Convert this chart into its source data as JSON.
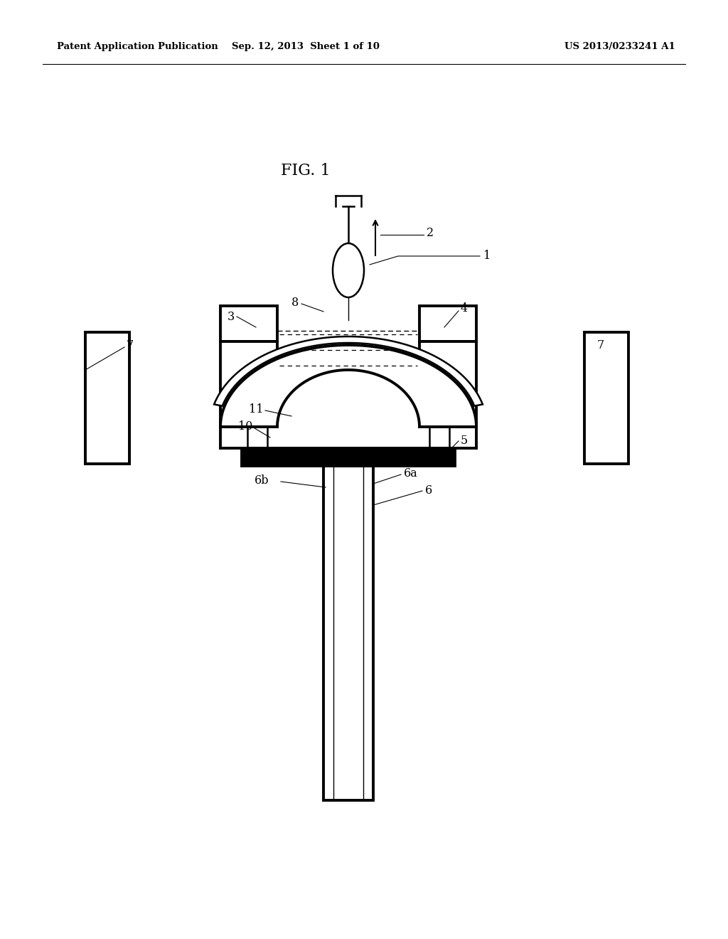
{
  "background_color": "#ffffff",
  "line_color": "#000000",
  "header_left": "Patent Application Publication",
  "header_center": "Sep. 12, 2013  Sheet 1 of 10",
  "header_right": "US 2013/0233241 A1",
  "fig_label": "FIG. 1"
}
